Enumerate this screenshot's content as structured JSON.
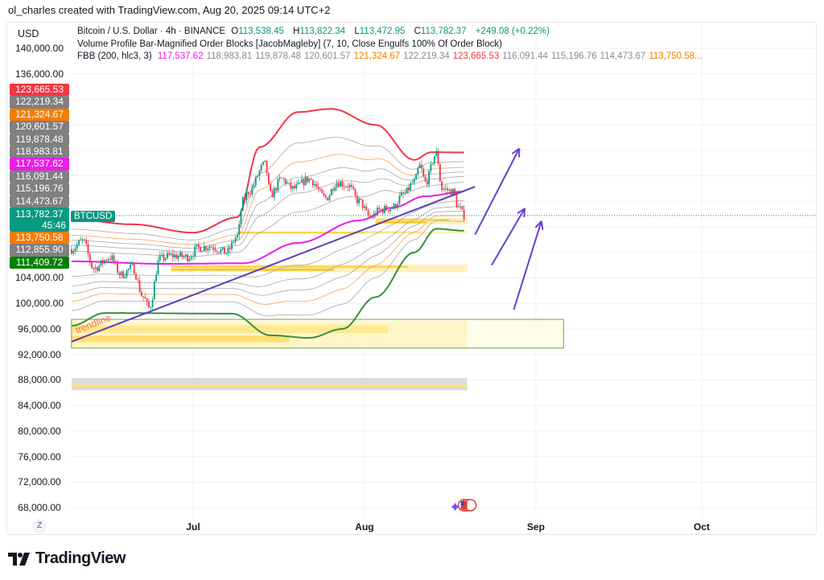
{
  "attribution": "ol_charles created with TradingView.com, Aug 20, 2025 09:14 UTC+2",
  "currency_button": "USD",
  "legend": {
    "symbol": "Bitcoin / U.S. Dollar · 4h · BINANCE",
    "ohlc": {
      "o_label": "O",
      "o": "113,538.45",
      "h_label": "H",
      "h": "113,822.34",
      "l_label": "L",
      "l": "113,472.95",
      "c_label": "C",
      "c": "113,782.37",
      "change": "+249.08 (+0.22%)"
    },
    "indicator_vp": "Volume Profile Bar-Magnified Order Blocks [JacobMagleby] (7, 10, Close Engulfs 100% Of Order Block)",
    "fbb_name": "FBB (200, hlc3, 3)",
    "fbb_values": [
      {
        "v": "117,537.62",
        "color": "#e91ee9"
      },
      {
        "v": "118,983.81",
        "color": "#8c8c8c"
      },
      {
        "v": "119,878.48",
        "color": "#8c8c8c"
      },
      {
        "v": "120,601.57",
        "color": "#8c8c8c"
      },
      {
        "v": "121,324.67",
        "color": "#f57c00"
      },
      {
        "v": "122,219.34",
        "color": "#8c8c8c"
      },
      {
        "v": "123,665.53",
        "color": "#f23645"
      },
      {
        "v": "116,091.44",
        "color": "#8c8c8c"
      },
      {
        "v": "115,196.76",
        "color": "#8c8c8c"
      },
      {
        "v": "114,473.67",
        "color": "#8c8c8c"
      },
      {
        "v": "113,750.58...",
        "color": "#f57c00"
      }
    ]
  },
  "price_axis": {
    "labels": [
      "140,000.00",
      "136,000.00",
      "104,000.00",
      "100,000.00",
      "96,000.00",
      "92,000.00",
      "88,000.00",
      "84,000.00",
      "80,000.00",
      "76,000.00",
      "72,000.00",
      "68,000.00"
    ],
    "tags": [
      {
        "v": "123,665.53",
        "color": "#f23645"
      },
      {
        "v": "122,219.34",
        "color": "#808080"
      },
      {
        "v": "121,324.67",
        "color": "#f57c00"
      },
      {
        "v": "120,601.57",
        "color": "#808080"
      },
      {
        "v": "119,878.48",
        "color": "#808080"
      },
      {
        "v": "118,983.81",
        "color": "#808080"
      },
      {
        "v": "117,537.62",
        "color": "#e91ee9"
      },
      {
        "v": "116,091.44",
        "color": "#808080"
      },
      {
        "v": "115,196.76",
        "color": "#808080"
      },
      {
        "v": "114,473.67",
        "color": "#808080"
      },
      {
        "v": "113,782.37",
        "color": "#089981",
        "countdown": "45:46"
      },
      {
        "v": "113,750.58",
        "color": "#f57c00"
      },
      {
        "v": "112,855.90",
        "color": "#808080"
      },
      {
        "v": "111,409.72",
        "color": "#008000"
      }
    ],
    "symbol_tag": "BTCUSD"
  },
  "time_axis": {
    "labels": [
      {
        "t": "Jul",
        "date": "2025-07-01"
      },
      {
        "t": "Aug",
        "date": "2025-08-01"
      },
      {
        "t": "Sep",
        "date": "2025-09-01"
      },
      {
        "t": "Oct",
        "date": "2025-10-01"
      }
    ],
    "reset_button": "Z"
  },
  "logo": "TradingView",
  "chart_data": {
    "type": "candlestick",
    "title": "Bitcoin / U.S. Dollar · 4h · BINANCE",
    "ylim": [
      66000,
      142000
    ],
    "xlim": [
      "2025-06-09",
      "2025-10-21"
    ],
    "grid": true,
    "colors": {
      "up": "#089981",
      "down": "#f23645",
      "basis": "#e91ee9",
      "upper": "#f23645",
      "lower": "#388e3c",
      "inner": "#a8a8a8",
      "fib618": "#f5a25d",
      "trendline": "#5b3fb8",
      "arrows": "#6a3fd0",
      "last_price": "#089981"
    },
    "close_path": [
      [
        "2025-06-09",
        108500
      ],
      [
        "2025-06-11",
        109800
      ],
      [
        "2025-06-13",
        105500
      ],
      [
        "2025-06-16",
        107200
      ],
      [
        "2025-06-18",
        104500
      ],
      [
        "2025-06-20",
        105600
      ],
      [
        "2025-06-22",
        101000
      ],
      [
        "2025-06-23",
        99300
      ],
      [
        "2025-06-25",
        107000
      ],
      [
        "2025-06-27",
        107500
      ],
      [
        "2025-06-30",
        107300
      ],
      [
        "2025-07-02",
        108700
      ],
      [
        "2025-07-04",
        109000
      ],
      [
        "2025-07-07",
        108000
      ],
      [
        "2025-07-09",
        110500
      ],
      [
        "2025-07-10",
        116000
      ],
      [
        "2025-07-11",
        117500
      ],
      [
        "2025-07-14",
        121800
      ],
      [
        "2025-07-15",
        117000
      ],
      [
        "2025-07-17",
        119500
      ],
      [
        "2025-07-19",
        118000
      ],
      [
        "2025-07-22",
        119500
      ],
      [
        "2025-07-25",
        116500
      ],
      [
        "2025-07-27",
        119000
      ],
      [
        "2025-07-29",
        118500
      ],
      [
        "2025-07-31",
        116000
      ],
      [
        "2025-08-02",
        113500
      ],
      [
        "2025-08-04",
        114700
      ],
      [
        "2025-08-06",
        115000
      ],
      [
        "2025-08-08",
        117000
      ],
      [
        "2025-08-10",
        119000
      ],
      [
        "2025-08-11",
        121500
      ],
      [
        "2025-08-12",
        119000
      ],
      [
        "2025-08-14",
        123500
      ],
      [
        "2025-08-15",
        118000
      ],
      [
        "2025-08-17",
        117500
      ],
      [
        "2025-08-18",
        115000
      ],
      [
        "2025-08-19",
        113782.37
      ]
    ],
    "fbb": {
      "ratios": [
        0.236,
        0.382,
        0.5,
        0.618,
        0.764,
        1
      ],
      "basis": [
        [
          "2025-06-09",
          106600
        ],
        [
          "2025-06-26",
          106200
        ],
        [
          "2025-07-10",
          106300
        ],
        [
          "2025-07-20",
          109500
        ],
        [
          "2025-07-31",
          113000
        ],
        [
          "2025-08-06",
          115000
        ],
        [
          "2025-08-12",
          116800
        ],
        [
          "2025-08-19",
          117537.62
        ]
      ],
      "upper": [
        [
          "2025-06-09",
          113200
        ],
        [
          "2025-06-20",
          112400
        ],
        [
          "2025-07-01",
          111100
        ],
        [
          "2025-07-09",
          113500
        ],
        [
          "2025-07-13",
          124500
        ],
        [
          "2025-07-20",
          130000
        ],
        [
          "2025-07-26",
          130500
        ],
        [
          "2025-08-03",
          128000
        ],
        [
          "2025-08-10",
          122500
        ],
        [
          "2025-08-13",
          123700
        ],
        [
          "2025-08-19",
          123665.53
        ]
      ],
      "lower": [
        [
          "2025-06-09",
          96500
        ],
        [
          "2025-06-15",
          98500
        ],
        [
          "2025-07-08",
          98400
        ],
        [
          "2025-07-15",
          95000
        ],
        [
          "2025-07-22",
          94600
        ],
        [
          "2025-07-28",
          96000
        ],
        [
          "2025-08-03",
          101000
        ],
        [
          "2025-08-10",
          108000
        ],
        [
          "2025-08-14",
          111700
        ],
        [
          "2025-08-19",
          111409.72
        ]
      ]
    },
    "order_blocks": [
      {
        "from": "2025-07-09",
        "to": "2025-08-19",
        "top": 111300,
        "bottom": 110900
      },
      {
        "from": "2025-08-03",
        "to": "2025-08-19",
        "top": 113400,
        "bottom": 112400
      },
      {
        "from": "2025-06-27",
        "to": "2025-08-19",
        "top": 106100,
        "bottom": 104900
      },
      {
        "from": "2025-06-09",
        "to": "2025-08-19",
        "top": 97200,
        "bottom": 93100
      },
      {
        "from": "2025-06-09",
        "to": "2025-08-19",
        "top": 88300,
        "bottom": 86400,
        "grey": true
      }
    ],
    "zone_box": {
      "from": "2025-06-09",
      "to": "2025-09-06",
      "top": 97500,
      "bottom": 93000
    },
    "trendline": {
      "label": "trendline",
      "from": [
        "2025-06-09",
        94000
      ],
      "to": [
        "2025-08-21",
        118300
      ]
    },
    "arrows": [
      {
        "from": [
          "2025-08-21",
          110800
        ],
        "to": [
          "2025-08-29",
          124300
        ]
      },
      {
        "from": [
          "2025-08-24",
          106000
        ],
        "to": [
          "2025-08-30",
          114900
        ]
      },
      {
        "from": [
          "2025-08-28",
          99000
        ],
        "to": [
          "2025-09-02",
          112900
        ]
      }
    ],
    "last_price": 113782.37
  }
}
